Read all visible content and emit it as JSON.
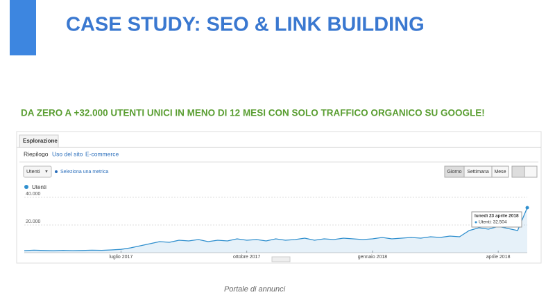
{
  "slide": {
    "title": "CASE STUDY: SEO & LINK BUILDING",
    "subtitle": "DA ZERO A +32.000 UTENTI UNICI IN MENO DI 12 MESI CON SOLO TRAFFICO ORGANICO SU GOOGLE!",
    "caption": "Portale di annunci"
  },
  "ui": {
    "tab": "Esplorazione",
    "subtabs": [
      "Riepilogo",
      "Uso del sito",
      "E-commerce"
    ],
    "metric_dropdown": "Utenti",
    "metric_link": "Seleziona una metrica",
    "period_buttons": [
      "Giorno",
      "Settimana",
      "Mese"
    ]
  },
  "chart_data": {
    "type": "line",
    "categories": [
      null,
      null,
      null,
      null,
      null,
      null,
      null,
      null,
      null,
      null,
      "luglio 2017",
      null,
      null,
      null,
      null,
      null,
      null,
      null,
      null,
      null,
      null,
      null,
      null,
      "ottobre 2017",
      null,
      null,
      null,
      null,
      null,
      null,
      null,
      null,
      null,
      null,
      null,
      null,
      "gennaio 2018",
      null,
      null,
      null,
      null,
      null,
      null,
      null,
      null,
      null,
      null,
      null,
      null,
      "aprile 2018",
      null,
      null,
      null
    ],
    "series": [
      {
        "name": "Utenti",
        "color": "#2f8fce",
        "values": [
          1500,
          1800,
          1600,
          1400,
          1700,
          1500,
          1600,
          1800,
          1700,
          2000,
          2400,
          3500,
          5000,
          6500,
          8000,
          7500,
          9000,
          8500,
          9500,
          8000,
          9000,
          8500,
          10000,
          9000,
          9500,
          8500,
          10000,
          9000,
          9500,
          10500,
          9000,
          10000,
          9500,
          10500,
          10000,
          9500,
          10000,
          11000,
          10000,
          10500,
          11000,
          10500,
          11500,
          11000,
          12000,
          11500,
          16000,
          18000,
          17000,
          19000,
          17500,
          16000,
          32504
        ]
      }
    ],
    "ylim": [
      0,
      42000
    ],
    "yticks": [
      {
        "value": 20000,
        "label": "20.000"
      },
      {
        "value": 40000,
        "label": "40.000"
      }
    ],
    "grid": true,
    "tooltip": {
      "date": "lunedì 23 aprile 2018",
      "text": "Utenti: 32.504"
    }
  }
}
